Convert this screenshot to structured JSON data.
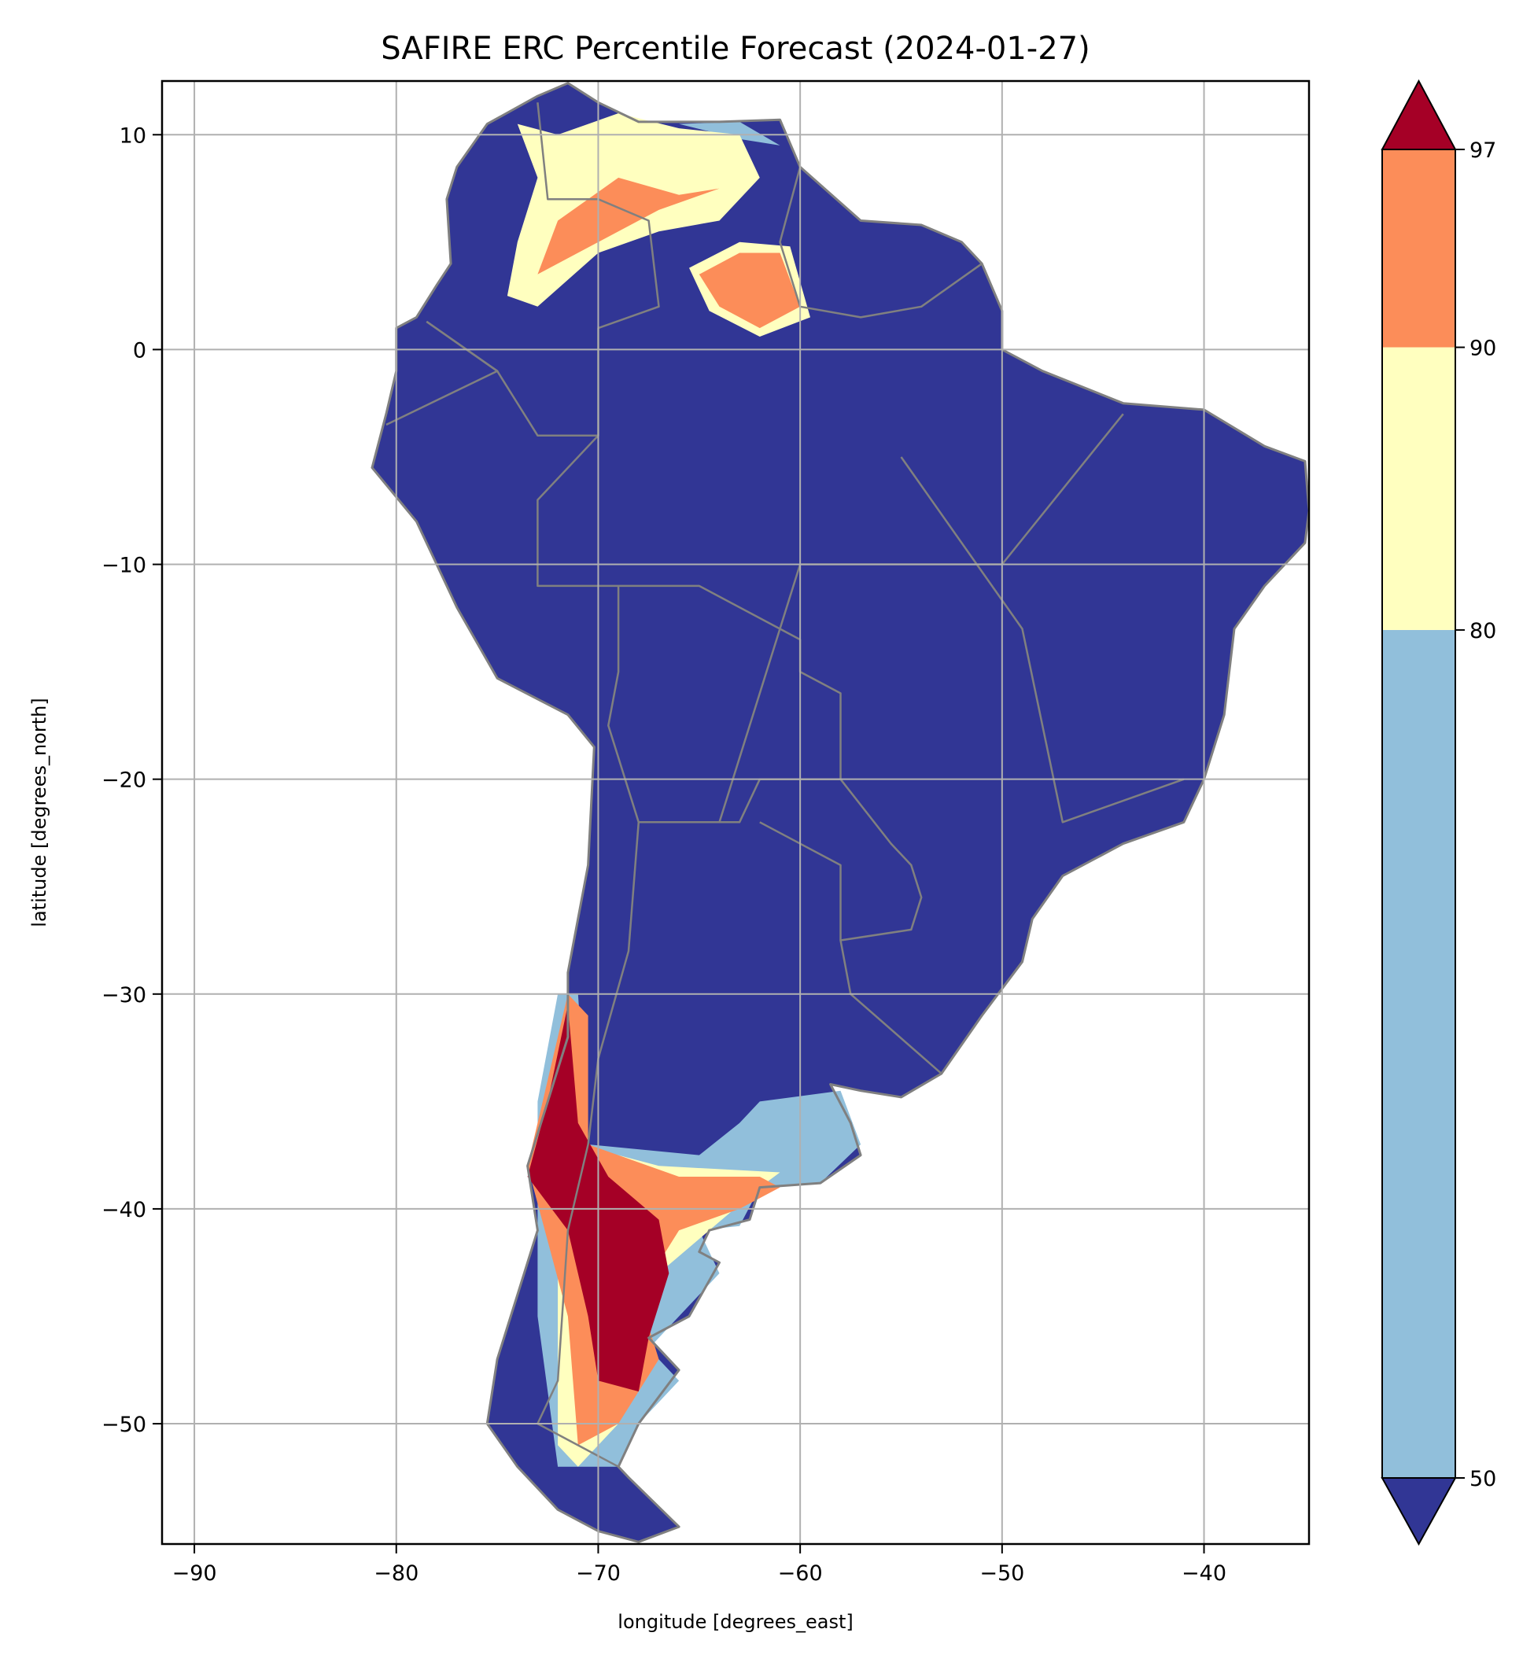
{
  "chart_data": {
    "type": "heatmap",
    "title": "SAFIRE ERC Percentile Forecast (2024-01-27)",
    "xlabel": "longitude [degrees_east]",
    "ylabel": "latitude [degrees_north]",
    "xlim": [
      -91.6,
      -34.8
    ],
    "ylim": [
      -55.6,
      12.5
    ],
    "xticks": [
      -90,
      -80,
      -70,
      -60,
      -50,
      -40
    ],
    "yticks": [
      10,
      0,
      -10,
      -20,
      -30,
      -40,
      -50
    ],
    "xtick_labels": [
      "−90",
      "−80",
      "−70",
      "−60",
      "−50",
      "−40"
    ],
    "ytick_labels": [
      "10",
      "0",
      "−10",
      "−20",
      "−30",
      "−40",
      "−50"
    ],
    "grid": true,
    "colorbar": {
      "levels": [
        50,
        80,
        90,
        97
      ],
      "tick_labels": [
        "50",
        "80",
        "90",
        "97"
      ],
      "extend": "both",
      "colors": {
        "below_50": "#313695",
        "50_80": "#91bfdb",
        "80_90": "#ffffbf",
        "90_97": "#fc8d59",
        "above_97": "#a50026"
      }
    },
    "border_color": "#808080",
    "grid_color": "#b0b0b0"
  }
}
